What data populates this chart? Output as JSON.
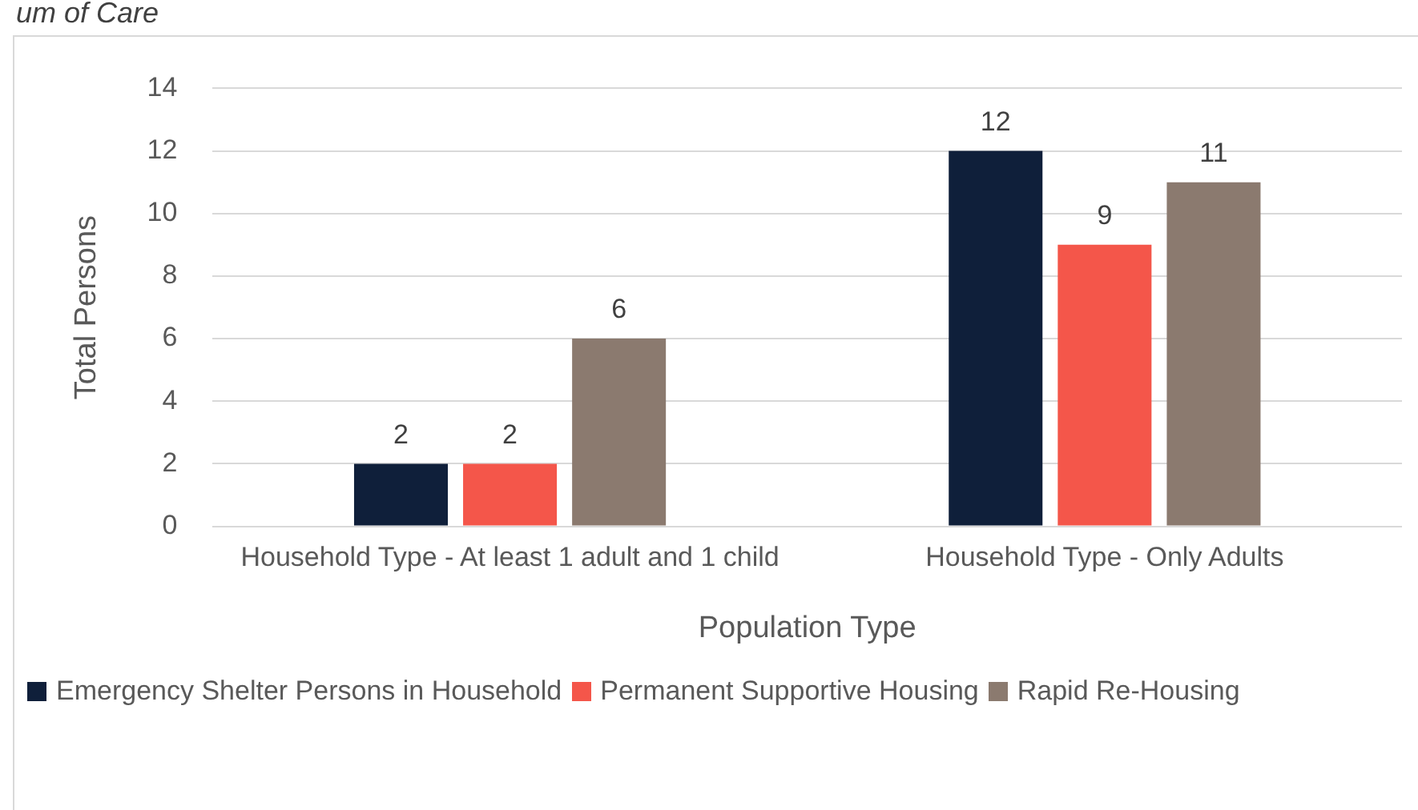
{
  "chart_data": {
    "type": "bar",
    "title": "um of Care",
    "xlabel": "Population Type",
    "ylabel": "Total Persons",
    "categories": [
      "Household Type - At least 1 adult and 1 child",
      "Household Type - Only Adults"
    ],
    "series": [
      {
        "name": "Emergency Shelter Persons in Household",
        "color": "#0f1f3a",
        "values": [
          2,
          12
        ]
      },
      {
        "name": "Permanent Supportive Housing",
        "color": "#f4564a",
        "values": [
          2,
          9
        ]
      },
      {
        "name": "Rapid Re-Housing",
        "color": "#8b7a6f",
        "values": [
          6,
          11
        ]
      }
    ],
    "ylim": [
      0,
      14
    ],
    "yticks": [
      0,
      2,
      4,
      6,
      8,
      10,
      12,
      14
    ],
    "grid": "y",
    "legend": "bottom",
    "data_labels": true
  }
}
